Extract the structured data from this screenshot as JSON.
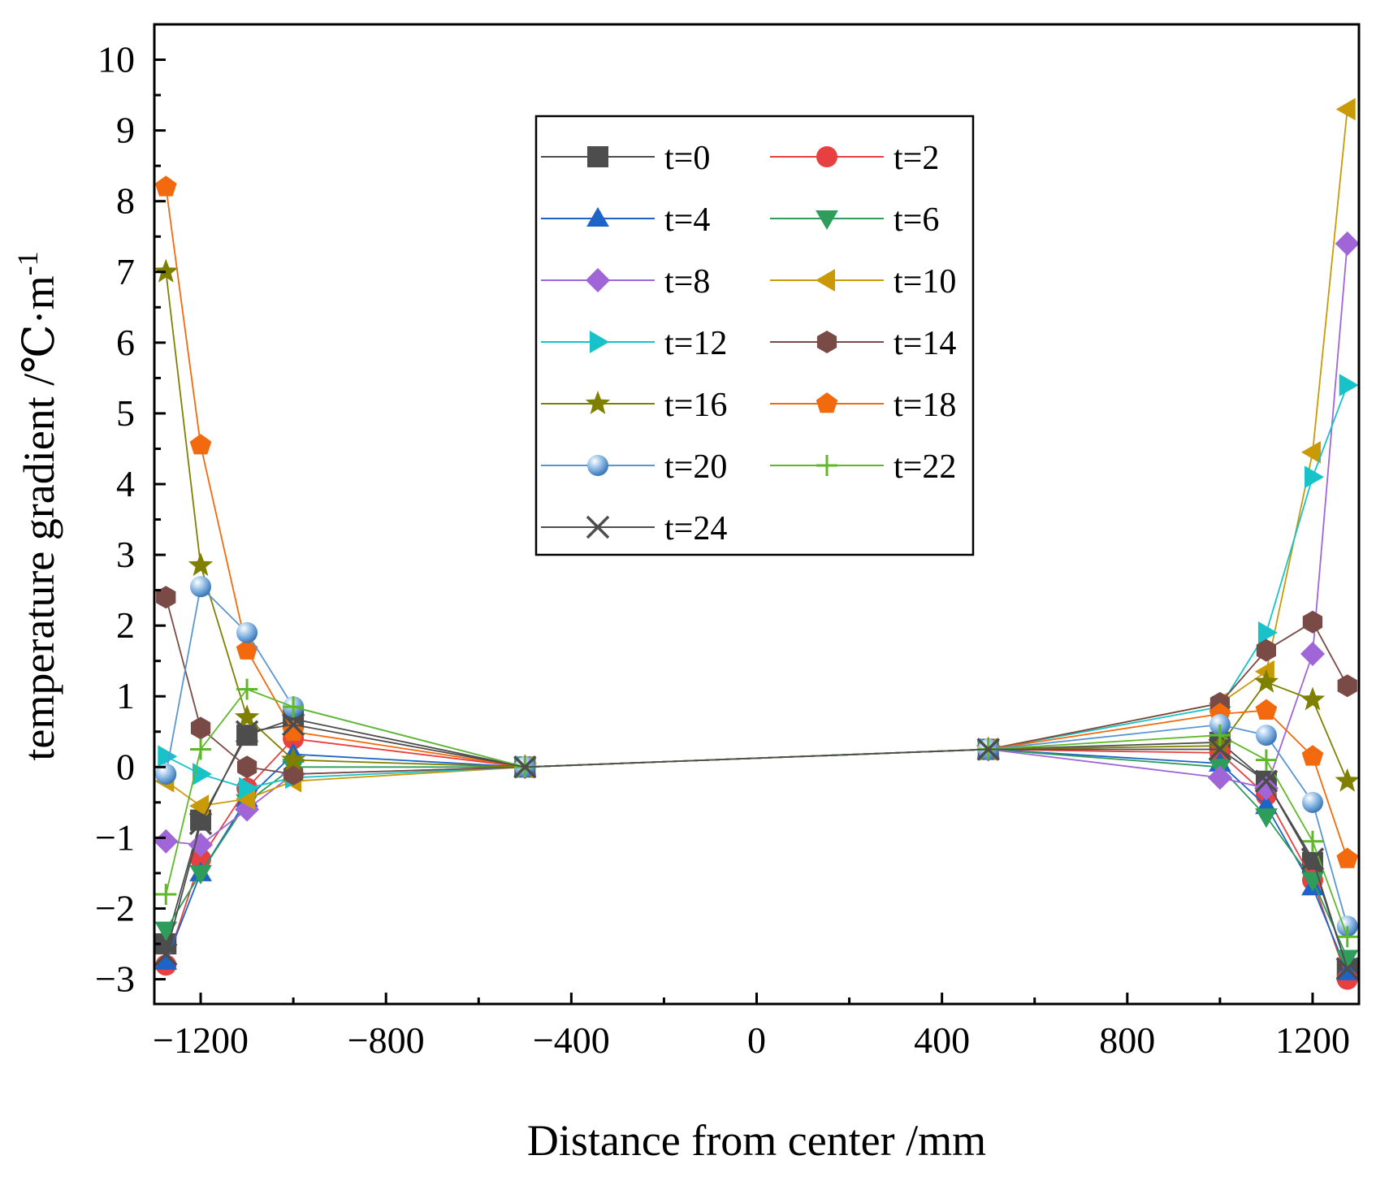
{
  "chart_data": {
    "type": "line",
    "title": "",
    "xlabel": "Distance from center /mm",
    "ylabel": "temperature gradient /℃·m",
    "ylabel_superscript": "-1",
    "xlim": [
      -1300,
      1300
    ],
    "ylim": [
      -3.35,
      10.5
    ],
    "x_ticks": [
      -1200,
      -800,
      -400,
      0,
      400,
      800,
      1200
    ],
    "x_tick_labels": [
      "−1200",
      "−800",
      "−400",
      "0",
      "400",
      "800",
      "1200"
    ],
    "y_ticks": [
      -3,
      -2,
      -1,
      0,
      1,
      2,
      3,
      4,
      5,
      6,
      7,
      8,
      9,
      10
    ],
    "y_tick_labels": [
      "−3",
      "−2",
      "−1",
      "0",
      "1",
      "2",
      "3",
      "4",
      "5",
      "6",
      "7",
      "8",
      "9",
      "10"
    ],
    "grid": false,
    "legend_position": "upper-center",
    "x": [
      -1275,
      -1200,
      -1100,
      -1000,
      -500,
      500,
      1000,
      1100,
      1200,
      1275
    ],
    "series": [
      {
        "name": "t=0",
        "color": "#4d4d4d",
        "marker": "square",
        "values": [
          -2.5,
          -0.75,
          0.45,
          0.68,
          0.0,
          0.25,
          0.35,
          -0.2,
          -1.35,
          -2.85
        ]
      },
      {
        "name": "t=2",
        "color": "#e84040",
        "marker": "circle",
        "values": [
          -2.8,
          -1.3,
          -0.3,
          0.4,
          0.0,
          0.25,
          0.2,
          -0.4,
          -1.6,
          -3.0
        ]
      },
      {
        "name": "t=4",
        "color": "#1e64c8",
        "marker": "triangle-up",
        "values": [
          -2.75,
          -1.5,
          -0.45,
          0.18,
          0.0,
          0.25,
          0.05,
          -0.55,
          -1.7,
          -2.9
        ]
      },
      {
        "name": "t=6",
        "color": "#2e9c5a",
        "marker": "triangle-down",
        "values": [
          -2.3,
          -1.5,
          -0.5,
          0.0,
          0.0,
          0.25,
          0.0,
          -0.7,
          -1.6,
          -2.7
        ]
      },
      {
        "name": "t=8",
        "color": "#a066d8",
        "marker": "diamond",
        "values": [
          -1.05,
          -1.1,
          -0.6,
          -0.1,
          0.0,
          0.25,
          -0.15,
          -0.3,
          1.6,
          7.4
        ]
      },
      {
        "name": "t=10",
        "color": "#c99a06",
        "marker": "triangle-left",
        "values": [
          -0.2,
          -0.55,
          -0.45,
          -0.2,
          0.0,
          0.25,
          0.9,
          1.35,
          4.45,
          9.3
        ]
      },
      {
        "name": "t=12",
        "color": "#17c3c8",
        "marker": "triangle-right",
        "values": [
          0.15,
          -0.1,
          -0.3,
          -0.15,
          0.0,
          0.25,
          0.85,
          1.9,
          4.1,
          5.4
        ]
      },
      {
        "name": "t=14",
        "color": "#7a4a46",
        "marker": "hexagon",
        "values": [
          2.4,
          0.55,
          0.0,
          -0.1,
          0.0,
          0.25,
          0.9,
          1.65,
          2.05,
          1.15
        ]
      },
      {
        "name": "t=16",
        "color": "#808000",
        "marker": "star",
        "values": [
          7.0,
          2.85,
          0.7,
          0.1,
          0.0,
          0.25,
          0.3,
          1.2,
          0.95,
          -0.2
        ]
      },
      {
        "name": "t=18",
        "color": "#f26a0d",
        "marker": "pentagon",
        "values": [
          8.2,
          4.55,
          1.65,
          0.5,
          0.0,
          0.25,
          0.75,
          0.8,
          0.15,
          -1.3
        ]
      },
      {
        "name": "t=20",
        "color": "#5a96d2",
        "marker": "sphere",
        "values": [
          -0.1,
          2.55,
          1.9,
          0.85,
          0.0,
          0.25,
          0.6,
          0.45,
          -0.5,
          -2.25
        ]
      },
      {
        "name": "t=22",
        "color": "#5fb82a",
        "marker": "plus",
        "values": [
          -1.8,
          0.25,
          1.1,
          0.85,
          0.0,
          0.25,
          0.45,
          0.1,
          -1.05,
          -2.4
        ]
      },
      {
        "name": "t=24",
        "color": "#4d4d4d",
        "marker": "cross",
        "values": [
          -2.65,
          -0.8,
          0.5,
          0.6,
          0.0,
          0.25,
          0.25,
          -0.2,
          -1.3,
          -2.85
        ]
      }
    ]
  }
}
